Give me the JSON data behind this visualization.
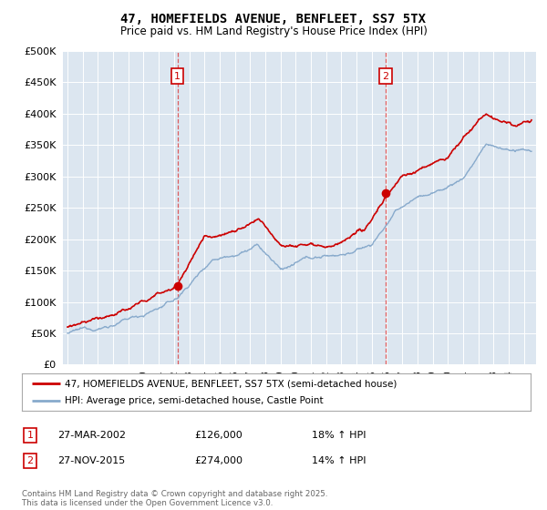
{
  "title": "47, HOMEFIELDS AVENUE, BENFLEET, SS7 5TX",
  "subtitle": "Price paid vs. HM Land Registry's House Price Index (HPI)",
  "legend_line1": "47, HOMEFIELDS AVENUE, BENFLEET, SS7 5TX (semi-detached house)",
  "legend_line2": "HPI: Average price, semi-detached house, Castle Point",
  "annotation1_label": "1",
  "annotation1_date": "27-MAR-2002",
  "annotation1_price": "£126,000",
  "annotation1_hpi": "18% ↑ HPI",
  "annotation2_label": "2",
  "annotation2_date": "27-NOV-2015",
  "annotation2_price": "£274,000",
  "annotation2_hpi": "14% ↑ HPI",
  "footer": "Contains HM Land Registry data © Crown copyright and database right 2025.\nThis data is licensed under the Open Government Licence v3.0.",
  "price_color": "#cc0000",
  "hpi_color": "#88aacc",
  "vline_color": "#dd4444",
  "background_color": "#ffffff",
  "plot_bg_color": "#dce6f0",
  "ylim": [
    0,
    500000
  ],
  "ytick_values": [
    0,
    50000,
    100000,
    150000,
    200000,
    250000,
    300000,
    350000,
    400000,
    450000,
    500000
  ],
  "purchase1_x": 2002.23,
  "purchase1_y": 126000,
  "purchase2_x": 2015.9,
  "purchase2_y": 274000,
  "xmin": 1994.7,
  "xmax": 2025.8
}
